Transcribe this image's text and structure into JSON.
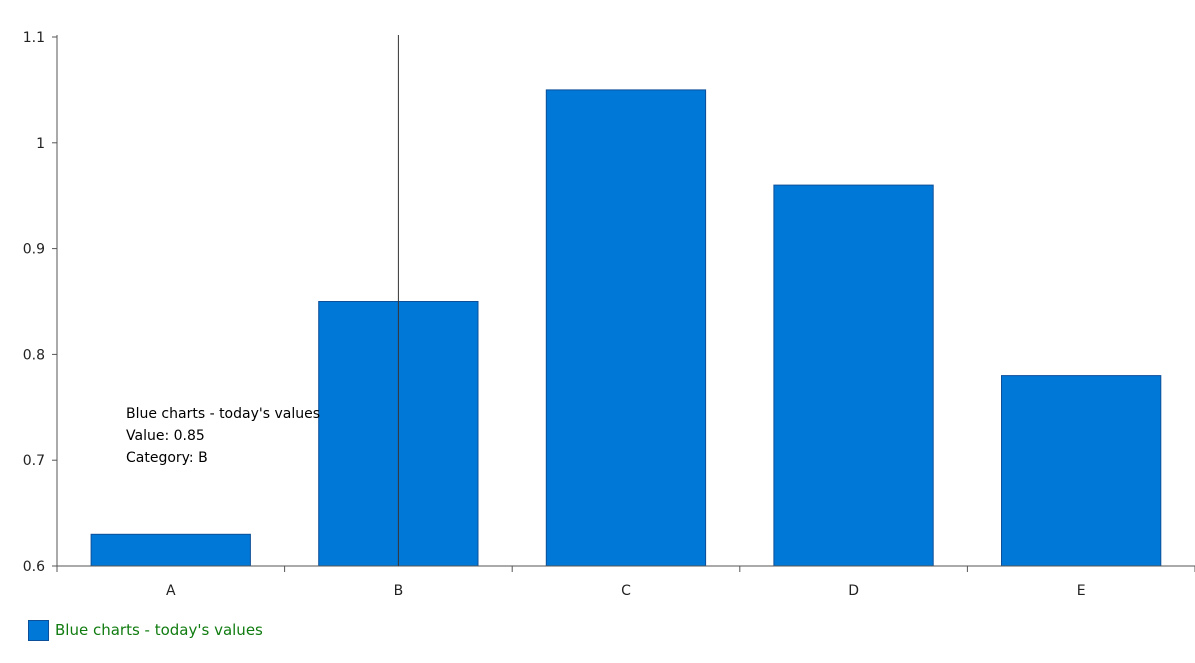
{
  "chart_data": {
    "type": "bar",
    "categories": [
      "A",
      "B",
      "C",
      "D",
      "E"
    ],
    "series": [
      {
        "name": "Blue charts - today's values",
        "values": [
          0.63,
          0.85,
          1.05,
          0.96,
          0.78
        ]
      }
    ],
    "ylim": [
      0.6,
      1.1
    ],
    "yticks": [
      0.6,
      0.7,
      0.8,
      0.9,
      1,
      1.1
    ],
    "ytick_labels": [
      "0.6",
      "0.7",
      "0.8",
      "0.9",
      "1",
      "1.1"
    ],
    "title": "",
    "xlabel": "",
    "ylabel": "",
    "grid": false,
    "legend_position": "bottom-left",
    "tooltip": {
      "series_line": "Blue charts - today's values",
      "value_line": "Value: 0.85",
      "category_line": "Category: B",
      "category": "B"
    },
    "colors": {
      "bar_fill": "#0078d7",
      "bar_stroke": "#0d4f99",
      "axis": "#555555",
      "crosshair": "#333333",
      "legend_text": "#107c10"
    }
  }
}
